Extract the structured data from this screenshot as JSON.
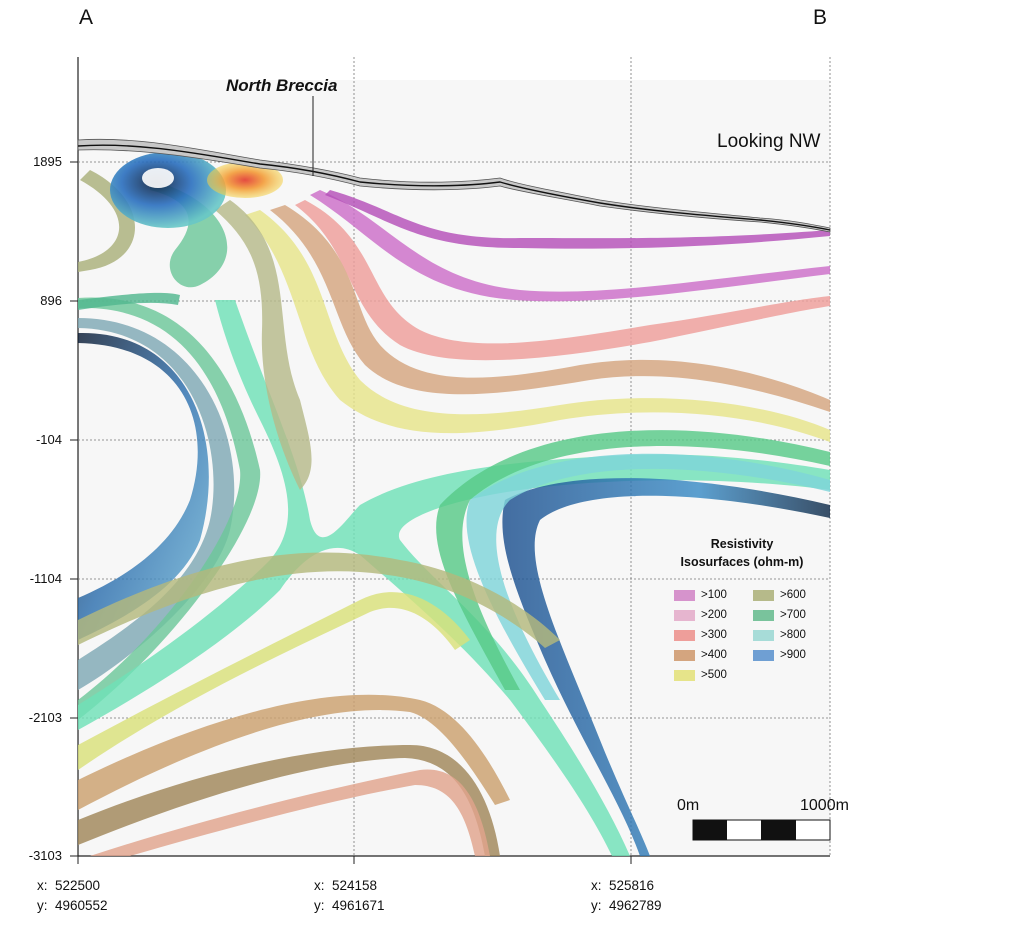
{
  "figure": {
    "section_start": "A",
    "section_end": "B",
    "view_label": "Looking NW",
    "feature_label": "North Breccia"
  },
  "axes": {
    "y_ticks": [
      "1895",
      "896",
      "-104",
      "-1104",
      "-2103",
      "-3103"
    ],
    "x_ticks": [
      {
        "x_label": "x:  522500",
        "y_label": "y:  4960552"
      },
      {
        "x_label": "x:  524158",
        "y_label": "y:  4961671"
      },
      {
        "x_label": "x:  525816",
        "y_label": "y:  4962789"
      }
    ]
  },
  "legend": {
    "title_line1": "Resistivity",
    "title_line2": "Isosurfaces (ohm-m)",
    "items": [
      {
        "label": ">100",
        "color": "#d693cc"
      },
      {
        "label": ">200",
        "color": "#e6b5cf"
      },
      {
        "label": ">300",
        "color": "#ee9e9a"
      },
      {
        "label": ">400",
        "color": "#d4a57f"
      },
      {
        "label": ">500",
        "color": "#e6e48a"
      },
      {
        "label": ">600",
        "color": "#b6ba8a"
      },
      {
        "label": ">700",
        "color": "#79c39c"
      },
      {
        "label": ">800",
        "color": "#a7dcd8"
      },
      {
        "label": ">900",
        "color": "#6f9fd3"
      }
    ]
  },
  "scale_bar": {
    "start_label": "0m",
    "end_label": "1000m"
  }
}
